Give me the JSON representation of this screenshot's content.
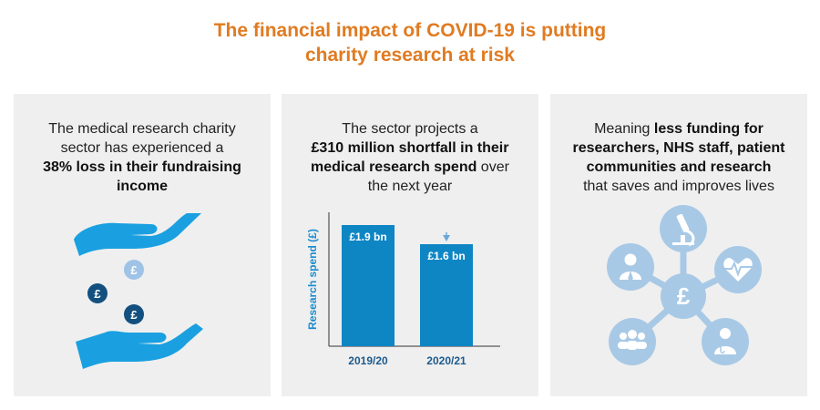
{
  "title": {
    "line1": "The financial impact of COVID-19 is putting",
    "line2": "charity research at risk",
    "color": "#e07b22"
  },
  "panel1": {
    "line1": "The medical research charity",
    "line2": "sector has experienced a",
    "line3_bold": "38% loss in their fundraising",
    "line4_bold": "income",
    "icons": [
      "giving-hand-icon",
      "receiving-hand-icon",
      "pound-coin-icon"
    ],
    "coin_symbol": "£"
  },
  "panel2": {
    "line1": "The sector projects a",
    "line2_bold": "£310 million shortfall in their",
    "line3_bold": "medical research spend",
    "line3_rest": " over",
    "line4": "the next year"
  },
  "panel3": {
    "line1_plain": "Meaning ",
    "line1_bold": "less funding for",
    "line2_bold": "researchers, NHS staff, patient",
    "line3_bold": "communities and research",
    "line4": "that saves and improves lives",
    "hub_symbol": "£",
    "icons": [
      "microscope-icon",
      "heart-monitor-icon",
      "doctor-icon",
      "community-group-icon",
      "researcher-icon"
    ]
  },
  "chart_data": {
    "type": "bar",
    "categories": [
      "2019/20",
      "2020/21"
    ],
    "values": [
      1.9,
      1.6
    ],
    "value_labels": [
      "£1.9 bn",
      "£1.6 bn"
    ],
    "ylabel": "Research spend (£)",
    "ylim": [
      0,
      2.1
    ],
    "bar_color": "#0e86c4",
    "arrow": "decline arrow pointing down to 2020/21 bar"
  }
}
